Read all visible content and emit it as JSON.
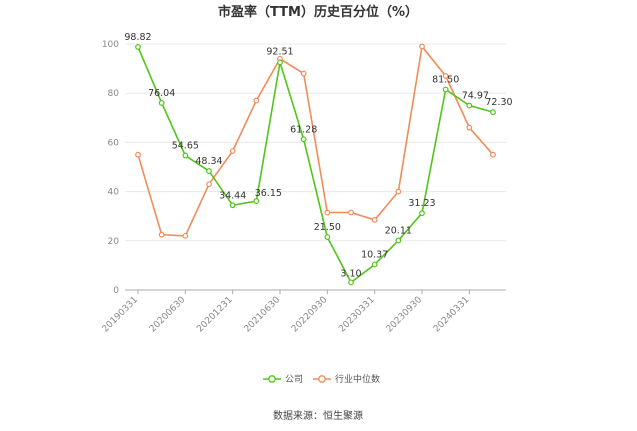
{
  "chart_data": {
    "type": "line",
    "title": "市盈率（TTM）历史百分位（%）",
    "xlabel": "",
    "ylabel": "",
    "ylim": [
      0,
      100
    ],
    "y_ticks": [
      0,
      20,
      40,
      60,
      80,
      100
    ],
    "grid": true,
    "legend_position": "bottom",
    "x_tick_labels": [
      "20190331",
      "20200630",
      "20201231",
      "20210630",
      "20220930",
      "20230331",
      "20230930",
      "20240331"
    ],
    "x_tick_indices": [
      0,
      2,
      4,
      6,
      8,
      10,
      12,
      14
    ],
    "series": [
      {
        "name": "公司",
        "color": "#52c41a",
        "values": [
          98.82,
          76.04,
          54.65,
          48.34,
          34.44,
          36.15,
          92.51,
          61.28,
          21.5,
          3.1,
          10.37,
          20.11,
          31.23,
          81.5,
          74.97,
          72.3
        ],
        "labels": [
          "98.82",
          "76.04",
          "54.65",
          "48.34",
          "34.44",
          "36.15",
          "92.51",
          "61.28",
          "21.50",
          "3.10",
          "10.37",
          "20.11",
          "31.23",
          "81.50",
          "74.97",
          "72.30"
        ]
      },
      {
        "name": "行业中位数",
        "color": "#f08c5a",
        "values": [
          55.0,
          22.5,
          22.0,
          43.0,
          56.5,
          77.0,
          94.0,
          88.0,
          31.5,
          31.5,
          28.5,
          40.0,
          99.0,
          87.0,
          66.0,
          55.0
        ]
      }
    ]
  },
  "source": "数据来源：恒生聚源"
}
